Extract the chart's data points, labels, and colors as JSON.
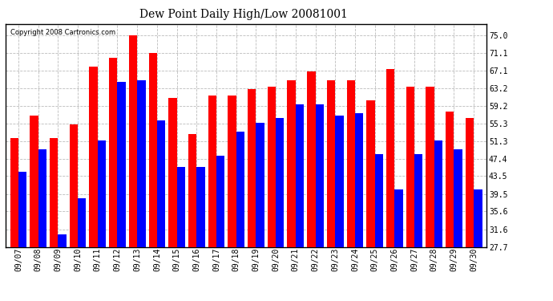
{
  "title": "Dew Point Daily High/Low 20081001",
  "copyright": "Copyright 2008 Cartronics.com",
  "dates": [
    "09/07",
    "09/08",
    "09/09",
    "09/10",
    "09/11",
    "09/12",
    "09/13",
    "09/14",
    "09/15",
    "09/16",
    "09/17",
    "09/18",
    "09/19",
    "09/20",
    "09/21",
    "09/22",
    "09/23",
    "09/24",
    "09/25",
    "09/26",
    "09/27",
    "09/28",
    "09/29",
    "09/30"
  ],
  "highs": [
    52.0,
    57.0,
    52.0,
    55.0,
    68.0,
    70.0,
    75.0,
    71.0,
    61.0,
    53.0,
    61.5,
    61.5,
    63.0,
    63.5,
    65.0,
    67.0,
    65.0,
    65.0,
    60.5,
    67.5,
    63.5,
    63.5,
    58.0,
    56.5
  ],
  "lows": [
    44.5,
    49.5,
    30.5,
    38.5,
    51.5,
    64.5,
    65.0,
    56.0,
    45.5,
    45.5,
    48.0,
    53.5,
    55.5,
    56.5,
    59.5,
    59.5,
    57.0,
    57.5,
    48.5,
    40.5,
    48.5,
    51.5,
    49.5,
    40.5
  ],
  "high_color": "#ff0000",
  "low_color": "#0000ff",
  "background_color": "#ffffff",
  "yticks": [
    27.7,
    31.6,
    35.6,
    39.5,
    43.5,
    47.4,
    51.3,
    55.3,
    59.2,
    63.2,
    67.1,
    71.1,
    75.0
  ],
  "ymin": 27.7,
  "ymax": 77.5,
  "bar_width": 0.42,
  "title_fontsize": 10,
  "tick_fontsize": 7
}
